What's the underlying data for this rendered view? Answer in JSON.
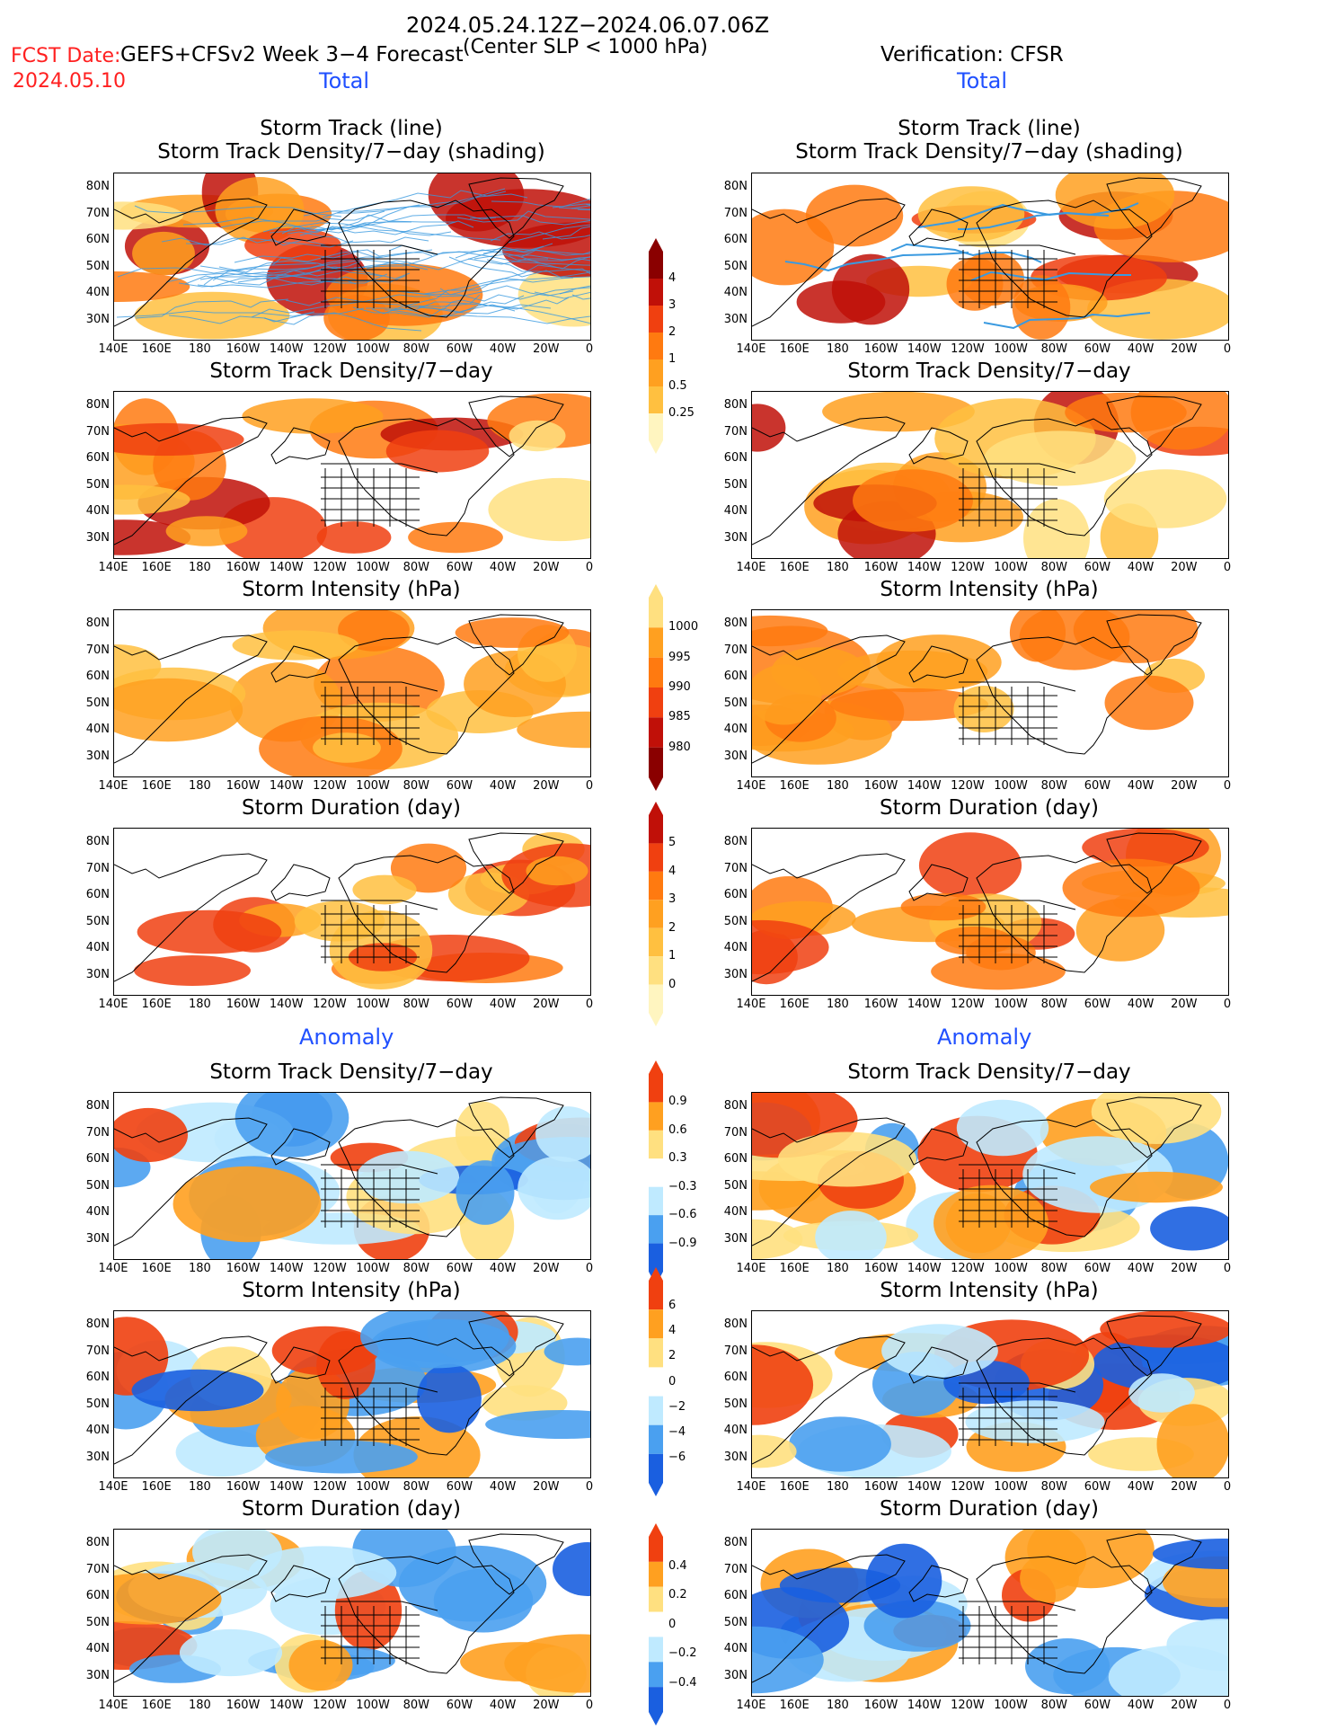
{
  "header": {
    "date_range": "2024.05.24.12Z−2024.06.07.06Z",
    "fcst_label": "FCST Date:",
    "fcst_date": "2024.05.10",
    "model": "GEFS+CFSv2 Week 3−4 Forecast",
    "criterion": "(Center SLP < 1000 hPa)",
    "verification": "Verification: CFSR"
  },
  "sections": {
    "total_left": "Total",
    "total_right": "Total",
    "anomaly_left": "Anomaly",
    "anomaly_right": "Anomaly"
  },
  "panels": {
    "r1": {
      "title1": "Storm Track (line)",
      "title2": "Storm Track Density/7−day (shading)"
    },
    "r2": "Storm Track Density/7−day",
    "r3": "Storm Intensity (hPa)",
    "r4": "Storm Duration (day)",
    "r5": "Storm Track Density/7−day",
    "r6": "Storm Intensity (hPa)",
    "r7": "Storm Duration (day)"
  },
  "axes": {
    "lat_labels": [
      "80N",
      "70N",
      "60N",
      "50N",
      "40N",
      "30N"
    ],
    "lon_labels": [
      "140E",
      "160E",
      "180",
      "160W",
      "140W",
      "120W",
      "100W",
      "80W",
      "60W",
      "40W",
      "20W",
      "0"
    ]
  },
  "colorbars": {
    "density_total": [
      "4",
      "3",
      "2",
      "1",
      "0.5",
      "0.25"
    ],
    "intensity_total": [
      "1000",
      "995",
      "990",
      "985",
      "980"
    ],
    "duration_total": [
      "5",
      "4",
      "3",
      "2",
      "1",
      "0"
    ],
    "density_anom": [
      "0.9",
      "0.6",
      "0.3",
      "−0.3",
      "−0.6",
      "−0.9"
    ],
    "intensity_anom": [
      "6",
      "4",
      "2",
      "0",
      "−2",
      "−4",
      "−6"
    ],
    "duration_anom": [
      "0.4",
      "0.2",
      "0",
      "−0.2",
      "−0.4"
    ]
  },
  "colors": {
    "total_scale": [
      "#fff5c0",
      "#ffe080",
      "#ffc040",
      "#ffa020",
      "#ff7a10",
      "#f04010",
      "#c01008",
      "#8a0000"
    ],
    "anom_pos": [
      "#ffe080",
      "#ffa020",
      "#f04010"
    ],
    "anom_neg": [
      "#bfeaff",
      "#4aa0f0",
      "#1a5fe0"
    ],
    "track_line": "#3a9ae0",
    "title_red": "#ff2020",
    "section_blue": "#2050ff"
  }
}
